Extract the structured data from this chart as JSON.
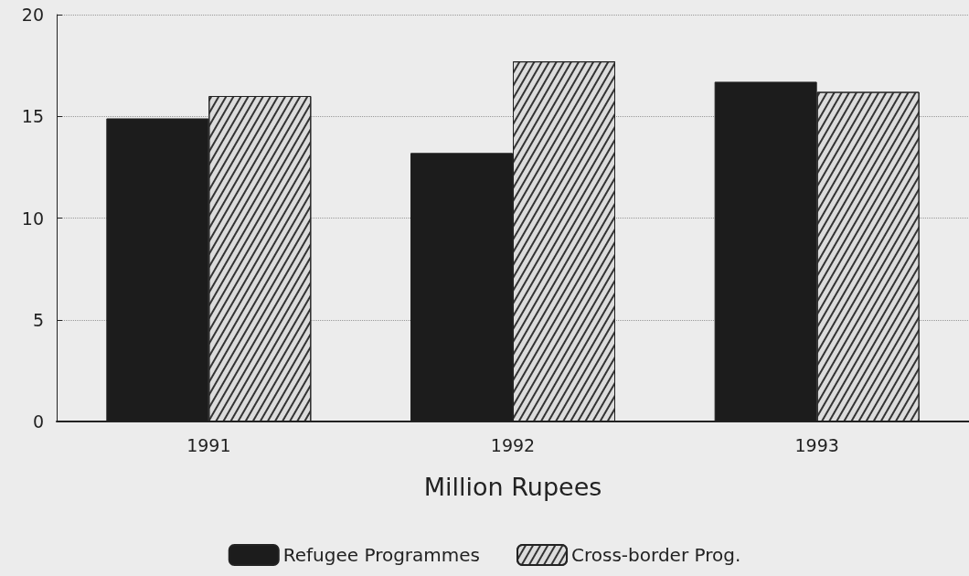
{
  "chart_data": {
    "type": "bar",
    "xlabel": "Million Rupees",
    "categories": [
      "1991",
      "1992",
      "1993"
    ],
    "series": [
      {
        "name": "Refugee Programmes",
        "color": "#1c1c1c",
        "values": [
          14.9,
          13.2,
          16.7
        ]
      },
      {
        "name": "Cross-border Prog.",
        "color": "#dcdcdc",
        "values": [
          16.0,
          17.7,
          16.2
        ]
      }
    ],
    "ylim": [
      0,
      20
    ],
    "yticks": [
      0,
      5,
      10,
      15,
      20
    ],
    "grid": "y",
    "legend": "bottom"
  }
}
